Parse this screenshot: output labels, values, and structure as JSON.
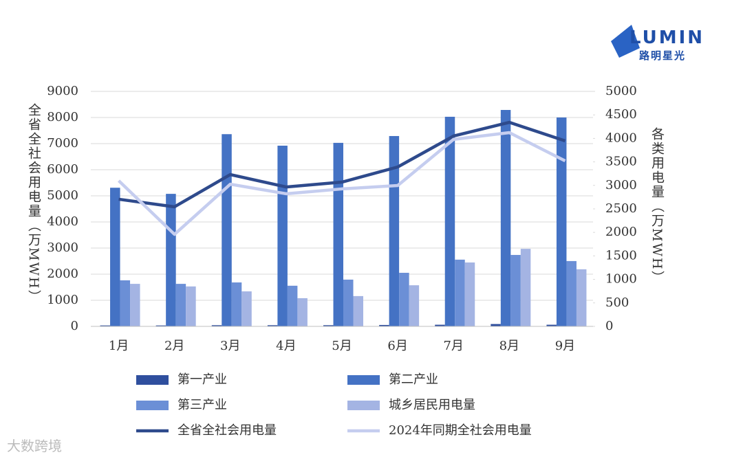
{
  "logo": {
    "name": "LUMIN",
    "subtitle": "路明星光"
  },
  "watermark": "大数跨境",
  "chart_data": {
    "type": "bar",
    "ylabel": "全省全社会用电量（万MWH）",
    "y2label": "各类用电量（万MWH）",
    "categories": [
      "1月",
      "2月",
      "3月",
      "4月",
      "5月",
      "6月",
      "7月",
      "8月",
      "9月"
    ],
    "ylim": [
      0,
      9000
    ],
    "yticks": [
      0,
      1000,
      2000,
      3000,
      4000,
      5000,
      6000,
      7000,
      8000,
      9000
    ],
    "y2lim": [
      0,
      5000
    ],
    "y2ticks": [
      0,
      500,
      1000,
      1500,
      2000,
      2500,
      3000,
      3500,
      4000,
      4500,
      5000
    ],
    "grid": true,
    "series": [
      {
        "name": "第一产业",
        "type": "bar",
        "axis": "y2",
        "color": "#2f4f9e",
        "values": [
          20,
          20,
          25,
          25,
          25,
          30,
          35,
          50,
          35
        ]
      },
      {
        "name": "第二产业",
        "type": "bar",
        "axis": "y2",
        "color": "#4472c4",
        "values": [
          2950,
          2820,
          4090,
          3845,
          3905,
          4050,
          4460,
          4605,
          4445
        ]
      },
      {
        "name": "第三产业",
        "type": "bar",
        "axis": "y2",
        "color": "#6b8fd6",
        "values": [
          980,
          905,
          935,
          865,
          995,
          1140,
          1420,
          1520,
          1390
        ]
      },
      {
        "name": "城乡居民用电量",
        "type": "bar",
        "axis": "y2",
        "color": "#a4b4e3",
        "values": [
          905,
          850,
          745,
          600,
          645,
          875,
          1360,
          1650,
          1215
        ]
      },
      {
        "name": "全省全社会用电量",
        "type": "line",
        "axis": "y",
        "color": "#2e4a8c",
        "values": [
          4870,
          4580,
          5815,
          5340,
          5525,
          6105,
          7290,
          7815,
          7105
        ]
      },
      {
        "name": "2024年同期全社会用电量",
        "type": "line",
        "axis": "y",
        "color": "#c5cdef",
        "values": [
          5580,
          3525,
          5445,
          5080,
          5265,
          5395,
          7160,
          7420,
          6340
        ]
      }
    ]
  }
}
